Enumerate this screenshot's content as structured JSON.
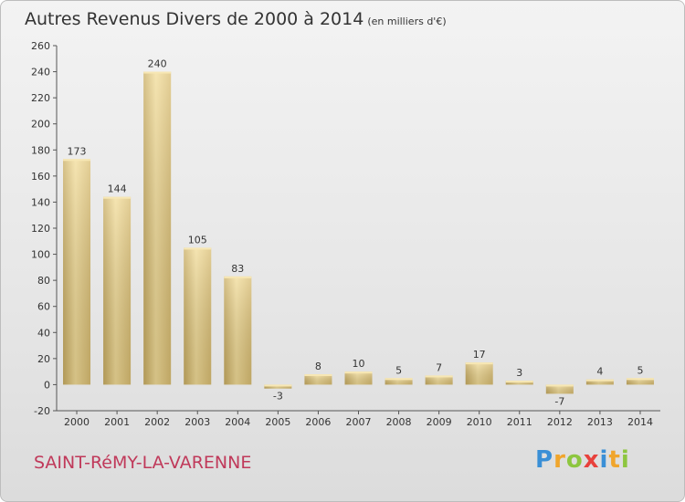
{
  "title": "Autres Revenus Divers de 2000 à 2014",
  "title_unit": "(en milliers d'€)",
  "place": "SAINT-RéMY-LA-VARENNE",
  "logo": {
    "letters": [
      "P",
      "r",
      "o",
      "x",
      "i",
      "t",
      "i"
    ],
    "colors": [
      "#3a8fd6",
      "#f0a52c",
      "#8dc63f",
      "#e8413c",
      "#3a8fd6",
      "#f0a52c",
      "#8dc63f"
    ]
  },
  "chart_data": {
    "type": "bar",
    "categories": [
      "2000",
      "2001",
      "2002",
      "2003",
      "2004",
      "2005",
      "2006",
      "2007",
      "2008",
      "2009",
      "2010",
      "2011",
      "2012",
      "2013",
      "2014"
    ],
    "values": [
      173,
      144,
      240,
      105,
      83,
      -3,
      8,
      10,
      5,
      7,
      17,
      3,
      -7,
      4,
      5
    ],
    "ylim": [
      -20,
      260
    ],
    "yticks": [
      -20,
      0,
      20,
      40,
      60,
      80,
      100,
      120,
      140,
      160,
      180,
      200,
      220,
      240,
      260
    ],
    "grid": false,
    "bar_color": "#e8cc7e"
  }
}
